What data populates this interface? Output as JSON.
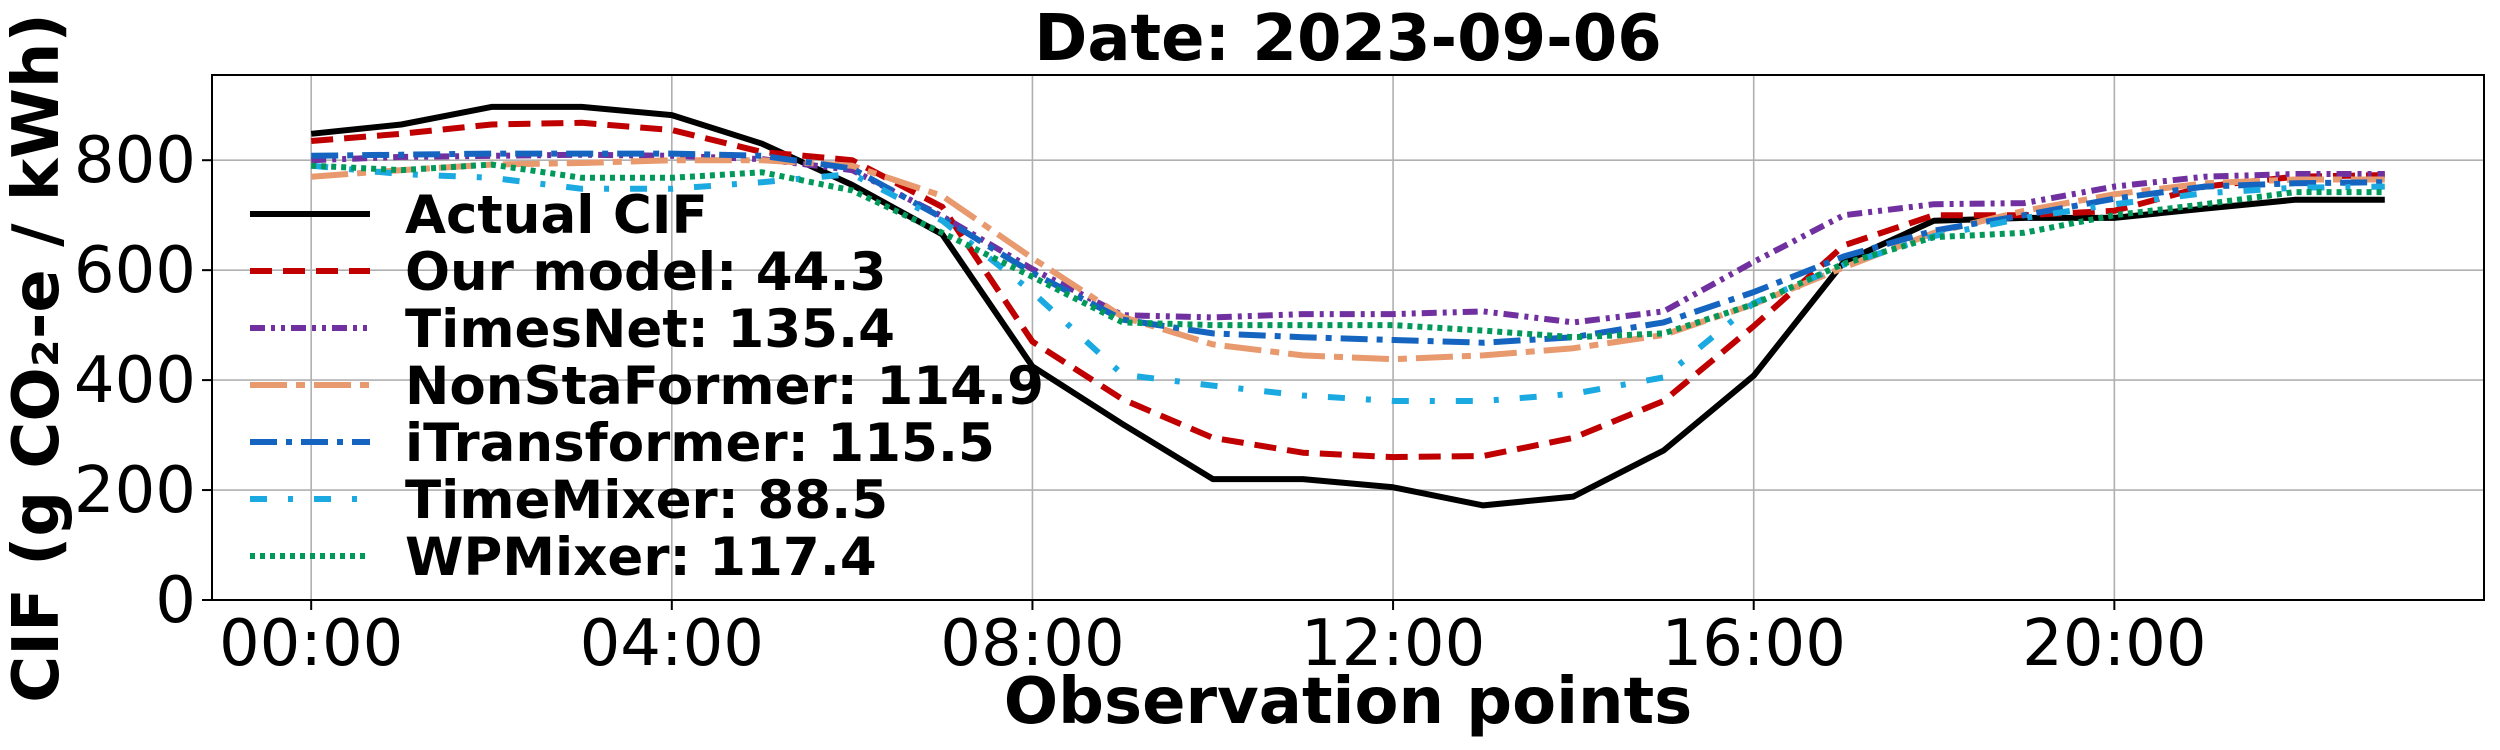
{
  "chart_data": {
    "type": "line",
    "title": "Date: 2023-09-06",
    "xlabel": "Observation points",
    "ylabel": "CIF (g CO₂-e / kWh)",
    "x": [
      0,
      1,
      2,
      3,
      4,
      5,
      6,
      7,
      8,
      9,
      10,
      11,
      12,
      13,
      14,
      15,
      16,
      17,
      18,
      19,
      20,
      21,
      22,
      23
    ],
    "xticks": [
      {
        "value": 0,
        "label": "00:00"
      },
      {
        "value": 4,
        "label": "04:00"
      },
      {
        "value": 8,
        "label": "08:00"
      },
      {
        "value": 12,
        "label": "12:00"
      },
      {
        "value": 16,
        "label": "16:00"
      },
      {
        "value": 20,
        "label": "20:00"
      }
    ],
    "yticks": [
      {
        "value": 0,
        "label": "0"
      },
      {
        "value": 200,
        "label": "200"
      },
      {
        "value": 400,
        "label": "400"
      },
      {
        "value": 600,
        "label": "600"
      },
      {
        "value": 800,
        "label": "800"
      }
    ],
    "xlim": [
      -1.1,
      24.1
    ],
    "ylim": [
      0,
      955
    ],
    "grid": true,
    "legend_position": "left",
    "series": [
      {
        "name": "Actual CIF",
        "color": "#000000",
        "dash": "solid",
        "values": [
          848,
          865,
          897,
          897,
          882,
          830,
          755,
          665,
          425,
          320,
          220,
          220,
          205,
          172,
          188,
          272,
          408,
          615,
          690,
          695,
          695,
          712,
          728,
          728
        ]
      },
      {
        "name": "Our model: 44.3",
        "color": "#c00000",
        "dash": "dashed",
        "values": [
          835,
          848,
          865,
          868,
          855,
          815,
          800,
          715,
          470,
          365,
          295,
          268,
          260,
          262,
          295,
          362,
          498,
          645,
          700,
          700,
          708,
          752,
          770,
          773
        ]
      },
      {
        "name": "TimesNet: 135.4",
        "color": "#7030a0",
        "dash": "dashdotdot",
        "values": [
          800,
          806,
          808,
          810,
          808,
          802,
          782,
          698,
          602,
          518,
          514,
          520,
          520,
          525,
          505,
          525,
          615,
          700,
          720,
          722,
          752,
          770,
          775,
          775
        ]
      },
      {
        "name": "NonStaFormer: 114.9",
        "color": "#e8996e",
        "dash": "longdashdot",
        "values": [
          770,
          782,
          792,
          795,
          800,
          800,
          790,
          735,
          622,
          515,
          465,
          445,
          438,
          445,
          458,
          482,
          538,
          605,
          668,
          708,
          738,
          758,
          765,
          765
        ]
      },
      {
        "name": "iTransformer: 115.5",
        "color": "#1565c0",
        "dash": "dashdot",
        "values": [
          808,
          810,
          812,
          812,
          812,
          808,
          785,
          695,
          595,
          510,
          485,
          478,
          473,
          468,
          478,
          505,
          560,
          625,
          672,
          700,
          730,
          752,
          758,
          760
        ]
      },
      {
        "name": "TimeMixer: 88.5",
        "color": "#1aa9e0",
        "dash": "dashdotsparse",
        "values": [
          790,
          775,
          768,
          748,
          748,
          760,
          775,
          690,
          560,
          410,
          390,
          372,
          362,
          362,
          375,
          405,
          540,
          610,
          662,
          695,
          720,
          740,
          750,
          752
        ]
      },
      {
        "name": "WPMixer: 117.4",
        "color": "#00995a",
        "dash": "dotted",
        "values": [
          790,
          782,
          792,
          768,
          768,
          778,
          745,
          668,
          588,
          505,
          500,
          500,
          500,
          490,
          478,
          485,
          538,
          612,
          660,
          668,
          700,
          720,
          742,
          742
        ]
      }
    ]
  }
}
